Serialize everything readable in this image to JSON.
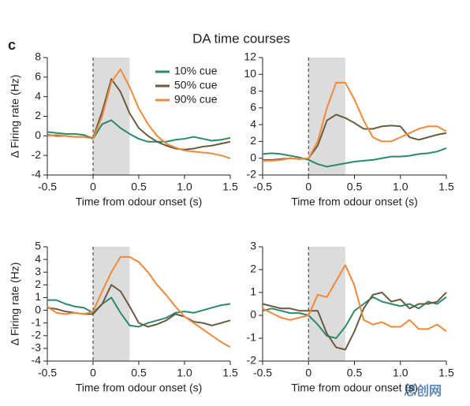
{
  "panel_label": "c",
  "title": "DA time courses",
  "watermark": "思创网",
  "chart_data": [
    {
      "type": "line",
      "xlabel": "Time from odour onset (s)",
      "ylabel": "Δ Firing rate (Hz)",
      "x": [
        -0.5,
        -0.4,
        -0.3,
        -0.2,
        -0.1,
        0,
        0.1,
        0.2,
        0.3,
        0.4,
        0.5,
        0.6,
        0.7,
        0.8,
        0.9,
        1,
        1.1,
        1.2,
        1.3,
        1.4,
        1.5
      ],
      "xlim": [
        -0.5,
        1.5
      ],
      "xticks": [
        -0.5,
        0,
        0.5,
        {
          "value": 1,
          "label": "1.0"
        },
        1.5
      ],
      "ylim": [
        -4,
        8
      ],
      "yticks": [
        -4,
        -2,
        0,
        2,
        4,
        6,
        8
      ],
      "shade": [
        0,
        0.4
      ],
      "onset_line": 0,
      "legend": "upper right",
      "series": [
        {
          "name": "10% cue",
          "color": "#2b8a6c",
          "values": [
            0.4,
            0.3,
            0.2,
            0.2,
            0.1,
            -0.3,
            1.2,
            1.6,
            0.8,
            0.2,
            -0.3,
            -0.6,
            -0.6,
            -0.6,
            -0.4,
            -0.3,
            -0.1,
            -0.3,
            -0.5,
            -0.4,
            -0.2
          ]
        },
        {
          "name": "50% cue",
          "color": "#6b5a40",
          "values": [
            0.1,
            0.0,
            0.0,
            -0.1,
            -0.1,
            -0.2,
            2.5,
            5.8,
            4.5,
            2.3,
            0.8,
            0.0,
            -0.6,
            -1.0,
            -1.3,
            -1.4,
            -1.3,
            -1.1,
            -1.0,
            -0.8,
            -0.6
          ]
        },
        {
          "name": "90% cue",
          "color": "#f0893a",
          "values": [
            0.0,
            0.1,
            0.0,
            -0.1,
            -0.1,
            -0.3,
            2.0,
            5.5,
            6.8,
            5.0,
            2.8,
            1.2,
            0.0,
            -0.8,
            -1.2,
            -1.5,
            -1.6,
            -1.7,
            -1.8,
            -2.0,
            -2.3
          ]
        }
      ]
    },
    {
      "type": "line",
      "xlabel": "Time from odour onset (s)",
      "x": [
        -0.5,
        -0.4,
        -0.3,
        -0.2,
        -0.1,
        0,
        0.1,
        0.2,
        0.3,
        0.4,
        0.5,
        0.6,
        0.7,
        0.8,
        0.9,
        1,
        1.1,
        1.2,
        1.3,
        1.4,
        1.5
      ],
      "xlim": [
        -0.5,
        1.5
      ],
      "xticks": [
        -0.5,
        0,
        0.5,
        {
          "value": 1,
          "label": "1.0"
        },
        1.5
      ],
      "ylim": [
        -2,
        12
      ],
      "yticks": [
        -2,
        0,
        2,
        4,
        6,
        8,
        10,
        12
      ],
      "shade": [
        0,
        0.4
      ],
      "onset_line": 0,
      "series": [
        {
          "color": "#2b8a6c",
          "values": [
            0.5,
            0.6,
            0.5,
            0.3,
            0.1,
            -0.2,
            -0.7,
            -1.0,
            -0.8,
            -0.6,
            -0.4,
            -0.3,
            -0.2,
            0.0,
            0.2,
            0.2,
            0.3,
            0.5,
            0.6,
            0.8,
            1.2
          ]
        },
        {
          "color": "#6b5a40",
          "values": [
            -0.2,
            -0.2,
            -0.1,
            0.0,
            -0.1,
            0.0,
            1.5,
            4.5,
            5.2,
            4.8,
            4.2,
            3.5,
            3.5,
            3.8,
            3.9,
            3.8,
            2.5,
            2.2,
            2.5,
            2.8,
            3.0
          ]
        },
        {
          "color": "#f0893a",
          "values": [
            -0.3,
            -0.3,
            -0.2,
            0.0,
            -0.1,
            0.0,
            2.0,
            6.0,
            9.0,
            9.0,
            7.0,
            4.5,
            2.5,
            2.0,
            2.0,
            2.5,
            3.0,
            3.5,
            3.8,
            3.8,
            3.2
          ]
        }
      ]
    },
    {
      "type": "line",
      "xlabel": "Time from odour onset (s)",
      "ylabel": "Δ Firing rate (Hz)",
      "x": [
        -0.5,
        -0.4,
        -0.3,
        -0.2,
        -0.1,
        0,
        0.1,
        0.2,
        0.3,
        0.4,
        0.5,
        0.6,
        0.7,
        0.8,
        0.9,
        1,
        1.1,
        1.2,
        1.3,
        1.4,
        1.5
      ],
      "xlim": [
        -0.5,
        1.5
      ],
      "xticks": [
        -0.5,
        0,
        0.5,
        {
          "value": 1,
          "label": "1.0"
        },
        1.5
      ],
      "ylim": [
        -4,
        5
      ],
      "yticks": [
        -4,
        -3,
        -2,
        -1,
        0,
        1,
        2,
        3,
        4,
        5
      ],
      "shade": [
        0,
        0.4
      ],
      "onset_line": 0,
      "series": [
        {
          "color": "#2b8a6c",
          "values": [
            0.8,
            0.8,
            0.5,
            0.3,
            0.2,
            -0.2,
            0.5,
            1.0,
            -0.2,
            -1.2,
            -1.3,
            -1.0,
            -0.8,
            -0.6,
            -0.2,
            -0.1,
            -0.2,
            0.0,
            0.2,
            0.4,
            0.5
          ]
        },
        {
          "color": "#6b5a40",
          "values": [
            0.2,
            0.1,
            -0.1,
            -0.2,
            -0.3,
            -0.3,
            0.5,
            2.0,
            1.5,
            0.3,
            -1.0,
            -1.3,
            -1.1,
            -0.8,
            -0.3,
            -0.5,
            -0.9,
            -1.0,
            -1.2,
            -1.0,
            -0.8
          ]
        },
        {
          "color": "#f0893a",
          "values": [
            0.3,
            -0.2,
            -0.3,
            -0.2,
            -0.3,
            -0.1,
            1.5,
            3.0,
            4.2,
            4.2,
            3.8,
            3.0,
            2.0,
            1.2,
            0.3,
            -0.5,
            -1.0,
            -1.5,
            -2.0,
            -2.5,
            -2.9
          ]
        }
      ]
    },
    {
      "type": "line",
      "xlabel": "Time from odour onset (s)",
      "x": [
        -0.5,
        -0.4,
        -0.3,
        -0.2,
        -0.1,
        0,
        0.1,
        0.2,
        0.3,
        0.4,
        0.5,
        0.6,
        0.7,
        0.8,
        0.9,
        1,
        1.1,
        1.2,
        1.3,
        1.4,
        1.5
      ],
      "xlim": [
        -0.5,
        1.5
      ],
      "xticks": [
        -0.5,
        0,
        0.5,
        {
          "value": 1,
          "label": "1.0"
        },
        1.5
      ],
      "ylim": [
        -2,
        3
      ],
      "yticks": [
        -2,
        -1,
        0,
        1,
        2,
        3
      ],
      "shade": [
        0,
        0.4
      ],
      "onset_line": 0,
      "series": [
        {
          "color": "#2b8a6c",
          "values": [
            0.2,
            0.3,
            0.2,
            0.1,
            0.1,
            0.0,
            -0.4,
            -0.9,
            -1.0,
            -0.5,
            0.2,
            0.5,
            0.8,
            0.6,
            0.5,
            0.4,
            0.5,
            0.3,
            0.6,
            0.5,
            0.8
          ]
        },
        {
          "color": "#6b5a40",
          "values": [
            0.5,
            0.4,
            0.3,
            0.3,
            0.2,
            0.2,
            0.2,
            -0.8,
            -1.4,
            -1.5,
            -0.7,
            0.3,
            0.9,
            1.0,
            0.6,
            0.7,
            0.3,
            0.5,
            0.5,
            0.6,
            1.0
          ]
        },
        {
          "color": "#f0893a",
          "values": [
            0.3,
            0.1,
            -0.1,
            -0.2,
            -0.1,
            0.0,
            0.9,
            0.8,
            1.5,
            2.2,
            1.3,
            -0.2,
            -0.4,
            -0.3,
            -0.5,
            -0.5,
            -0.2,
            -0.6,
            -0.6,
            -0.4,
            -0.7
          ]
        }
      ]
    }
  ]
}
